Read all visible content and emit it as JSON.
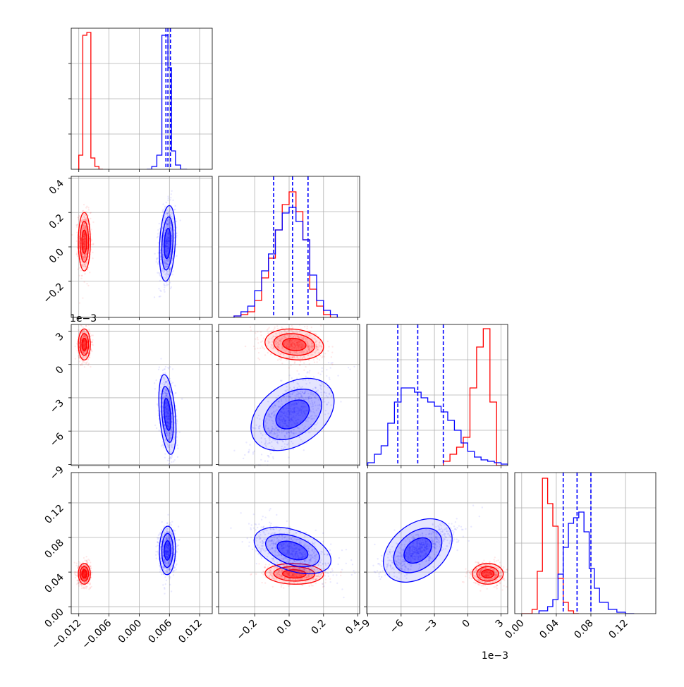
{
  "figure": {
    "offset_label_x3": "1e−3",
    "offset_label_y3": "1e−3"
  },
  "colors": {
    "red": "#ff0000",
    "blue": "#0000ff",
    "grid": "#b0b0b0",
    "axis": "#000000"
  },
  "chart_data": {
    "type": "corner",
    "parameters": [
      "p1",
      "p2",
      "p3",
      "p4"
    ],
    "axis_ranges": {
      "p1": [
        -0.0135,
        0.0145
      ],
      "p2": [
        -0.41,
        0.41
      ],
      "p3": [
        -0.0091,
        0.0036
      ],
      "p4": [
        -0.008,
        0.155
      ]
    },
    "ticks": {
      "p1": [
        -0.012,
        -0.006,
        0.0,
        0.006,
        0.012
      ],
      "p2": [
        -0.2,
        0.0,
        0.2,
        0.4
      ],
      "p3": [
        -9,
        -6,
        -3,
        0,
        3
      ],
      "p4": [
        0.0,
        0.04,
        0.08,
        0.12
      ]
    },
    "tick_labels": {
      "p1": [
        "−0.012",
        "−0.006",
        "0.000",
        "0.006",
        "0.012"
      ],
      "p2_x": [
        "−0.2",
        "0.0",
        "0.2",
        "0.4"
      ],
      "p2_y": [
        "−0.2",
        "0.0",
        "0.2",
        "0.4"
      ],
      "p3": [
        "−9",
        "−6",
        "−3",
        "0",
        "3"
      ],
      "p4": [
        "0.00",
        "0.04",
        "0.08",
        "0.12"
      ]
    },
    "grid": true,
    "series": [
      {
        "color": "#ff0000",
        "mean": [
          -0.0109,
          0.03,
          0.0018,
          0.038
        ],
        "sd": [
          0.0006,
          0.085,
          0.0007,
          0.006
        ],
        "corr": {
          "12": 0.0,
          "13": 0.0,
          "14": 0.0,
          "23": -0.2,
          "24": -0.05,
          "34": 0.0
        },
        "hist": {
          "p1": {
            "edges": [
              -0.012,
              -0.0112,
              -0.0104,
              -0.0096,
              -0.0088,
              -0.008,
              -0.0072
            ],
            "counts": [
              0.1,
              0.95,
              0.97,
              0.08,
              0.02,
              0.0
            ]
          },
          "p2": {
            "edges": [
              -0.32,
              -0.28,
              -0.24,
              -0.2,
              -0.16,
              -0.12,
              -0.08,
              -0.04,
              0.0,
              0.04,
              0.08,
              0.12,
              0.16,
              0.2,
              0.24,
              0.28
            ],
            "counts": [
              0.01,
              0.02,
              0.04,
              0.12,
              0.28,
              0.42,
              0.62,
              0.8,
              0.89,
              0.75,
              0.55,
              0.2,
              0.08,
              0.02,
              0.0
            ]
          },
          "p3": {
            "edges": [
              -2.2,
              -1.6,
              -1.0,
              -0.4,
              0.2,
              0.8,
              1.4,
              2.0,
              2.6,
              3.2
            ],
            "counts": [
              0.03,
              0.08,
              0.13,
              0.2,
              0.55,
              0.84,
              0.97,
              0.45,
              0.0
            ]
          },
          "p4": {
            "edges": [
              0.0,
              0.012,
              0.018,
              0.024,
              0.03,
              0.036,
              0.042,
              0.048,
              0.054,
              0.06,
              0.066
            ],
            "counts": [
              0.0,
              0.03,
              0.3,
              0.96,
              0.78,
              0.62,
              0.25,
              0.08,
              0.02,
              0.0
            ]
          }
        }
      },
      {
        "color": "#0000ff",
        "mean": [
          0.0056,
          0.02,
          -0.0045,
          0.065
        ],
        "sd": [
          0.0008,
          0.11,
          0.0018,
          0.014
        ],
        "corr": {
          "12": 0.25,
          "13": -0.35,
          "14": 0.05,
          "23": 0.65,
          "24": -0.55,
          "34": 0.75
        },
        "quantiles": {
          "p1": [
            0.0053,
            0.0057,
            0.0062
          ],
          "p2": [
            -0.09,
            0.02,
            0.11
          ],
          "p3": [
            -0.0063,
            -0.0045,
            -0.0022
          ],
          "p4": [
            0.048,
            0.064,
            0.08
          ]
        },
        "hist": {
          "p1": {
            "edges": [
              0.0015,
              0.0025,
              0.0035,
              0.0045,
              0.0051,
              0.0057,
              0.0064,
              0.0072,
              0.0082,
              0.0095
            ],
            "counts": [
              0.0,
              0.02,
              0.1,
              0.95,
              0.95,
              0.72,
              0.13,
              0.03,
              0.0
            ]
          },
          "p2": {
            "edges": [
              -0.32,
              -0.28,
              -0.24,
              -0.2,
              -0.16,
              -0.12,
              -0.08,
              -0.04,
              0.0,
              0.04,
              0.08,
              0.12,
              0.16,
              0.2,
              0.24,
              0.28
            ],
            "counts": [
              0.01,
              0.04,
              0.08,
              0.19,
              0.33,
              0.45,
              0.62,
              0.74,
              0.78,
              0.68,
              0.55,
              0.3,
              0.12,
              0.05,
              0.02
            ]
          },
          "p3": {
            "edges": [
              -9.0,
              -8.4,
              -7.8,
              -7.2,
              -6.6,
              -6.0,
              -5.4,
              -4.8,
              -4.2,
              -3.6,
              -3.0,
              -2.4,
              -1.8,
              -1.2,
              -0.6,
              0.0,
              0.6,
              1.2,
              1.8,
              2.4,
              3.0,
              3.6
            ],
            "counts": [
              0.02,
              0.08,
              0.14,
              0.3,
              0.45,
              0.55,
              0.55,
              0.52,
              0.48,
              0.45,
              0.42,
              0.38,
              0.32,
              0.25,
              0.16,
              0.1,
              0.06,
              0.04,
              0.03,
              0.02,
              0.01
            ]
          },
          "p4": {
            "edges": [
              0.02,
              0.03,
              0.036,
              0.042,
              0.048,
              0.054,
              0.06,
              0.066,
              0.072,
              0.078,
              0.084,
              0.09,
              0.1,
              0.11,
              0.12,
              0.13
            ],
            "counts": [
              0.02,
              0.05,
              0.1,
              0.28,
              0.47,
              0.64,
              0.68,
              0.72,
              0.58,
              0.32,
              0.18,
              0.08,
              0.03,
              0.01,
              0.0
            ]
          }
        }
      }
    ]
  }
}
